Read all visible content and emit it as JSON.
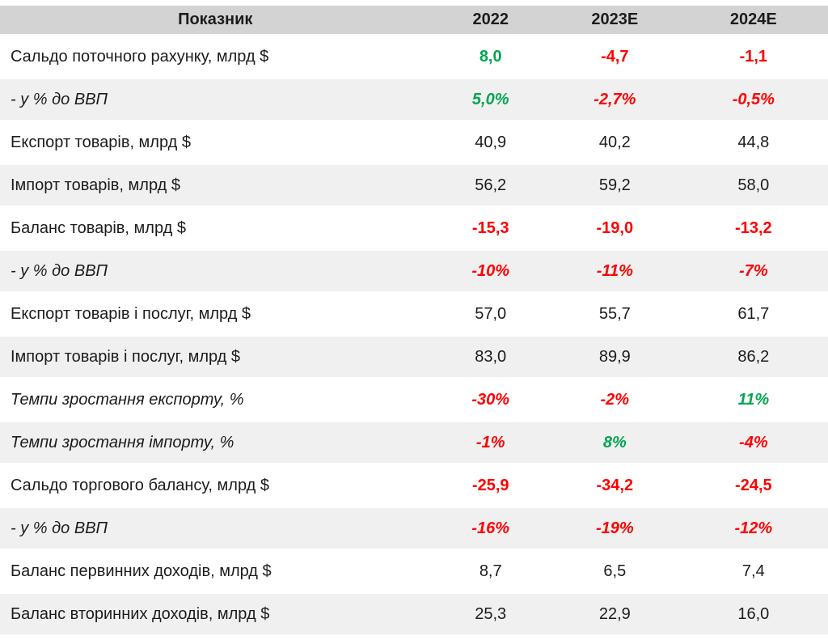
{
  "colors": {
    "positive": "#00a651",
    "negative": "#ff0000",
    "neutral": "#1c1c1c",
    "header_bg": "#d3d3d3",
    "stripe_bg": "#f0f0f0"
  },
  "chart_data": {
    "type": "table",
    "title": "",
    "columns": [
      "Показник",
      "2022",
      "2023E",
      "2024E"
    ],
    "rows": [
      {
        "label": "Сальдо поточного рахунку, млрд $",
        "italic": false,
        "values": [
          {
            "text": "8,0",
            "tone": "positive"
          },
          {
            "text": "-4,7",
            "tone": "negative"
          },
          {
            "text": "-1,1",
            "tone": "negative"
          }
        ]
      },
      {
        "label": "- у % до ВВП",
        "italic": true,
        "values": [
          {
            "text": "5,0%",
            "tone": "positive"
          },
          {
            "text": "-2,7%",
            "tone": "negative"
          },
          {
            "text": "-0,5%",
            "tone": "negative"
          }
        ]
      },
      {
        "label": "Експорт товарів, млрд $",
        "italic": false,
        "values": [
          {
            "text": "40,9",
            "tone": "neutral"
          },
          {
            "text": "40,2",
            "tone": "neutral"
          },
          {
            "text": "44,8",
            "tone": "neutral"
          }
        ]
      },
      {
        "label": "Імпорт товарів, млрд $",
        "italic": false,
        "values": [
          {
            "text": "56,2",
            "tone": "neutral"
          },
          {
            "text": "59,2",
            "tone": "neutral"
          },
          {
            "text": "58,0",
            "tone": "neutral"
          }
        ]
      },
      {
        "label": "Баланс товарів, млрд $",
        "italic": false,
        "values": [
          {
            "text": "-15,3",
            "tone": "negative"
          },
          {
            "text": "-19,0",
            "tone": "negative"
          },
          {
            "text": "-13,2",
            "tone": "negative"
          }
        ]
      },
      {
        "label": "- у % до ВВП",
        "italic": true,
        "values": [
          {
            "text": "-10%",
            "tone": "negative"
          },
          {
            "text": "-11%",
            "tone": "negative"
          },
          {
            "text": "-7%",
            "tone": "negative"
          }
        ]
      },
      {
        "label": "Експорт товарів і послуг, млрд $",
        "italic": false,
        "values": [
          {
            "text": "57,0",
            "tone": "neutral"
          },
          {
            "text": "55,7",
            "tone": "neutral"
          },
          {
            "text": "61,7",
            "tone": "neutral"
          }
        ]
      },
      {
        "label": "Імпорт товарів і послуг, млрд $",
        "italic": false,
        "values": [
          {
            "text": "83,0",
            "tone": "neutral"
          },
          {
            "text": "89,9",
            "tone": "neutral"
          },
          {
            "text": "86,2",
            "tone": "neutral"
          }
        ]
      },
      {
        "label": "Темпи зростання експорту, %",
        "italic": true,
        "values": [
          {
            "text": "-30%",
            "tone": "negative"
          },
          {
            "text": "-2%",
            "tone": "negative"
          },
          {
            "text": "11%",
            "tone": "positive"
          }
        ]
      },
      {
        "label": "Темпи зростання імпорту, %",
        "italic": true,
        "values": [
          {
            "text": "-1%",
            "tone": "negative"
          },
          {
            "text": "8%",
            "tone": "positive"
          },
          {
            "text": "-4%",
            "tone": "negative"
          }
        ]
      },
      {
        "label": "Сальдо торгового балансу, млрд $",
        "italic": false,
        "values": [
          {
            "text": "-25,9",
            "tone": "negative"
          },
          {
            "text": "-34,2",
            "tone": "negative"
          },
          {
            "text": "-24,5",
            "tone": "negative"
          }
        ]
      },
      {
        "label": "- у % до ВВП",
        "italic": true,
        "values": [
          {
            "text": "-16%",
            "tone": "negative"
          },
          {
            "text": "-19%",
            "tone": "negative"
          },
          {
            "text": "-12%",
            "tone": "negative"
          }
        ]
      },
      {
        "label": "Баланс первинних доходів, млрд $",
        "italic": false,
        "values": [
          {
            "text": "8,7",
            "tone": "neutral"
          },
          {
            "text": "6,5",
            "tone": "neutral"
          },
          {
            "text": "7,4",
            "tone": "neutral"
          }
        ]
      },
      {
        "label": "Баланс вторинних доходів, млрд $",
        "italic": false,
        "values": [
          {
            "text": "25,3",
            "tone": "neutral"
          },
          {
            "text": "22,9",
            "tone": "neutral"
          },
          {
            "text": "16,0",
            "tone": "neutral"
          }
        ]
      }
    ]
  }
}
